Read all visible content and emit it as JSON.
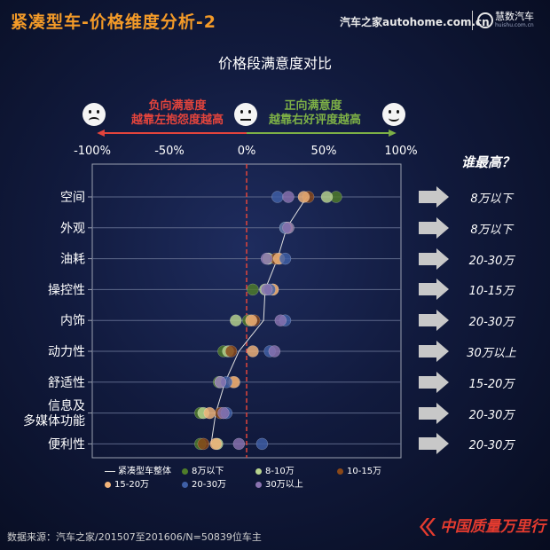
{
  "header": {
    "title": "紧凑型车-价格维度分析-2"
  },
  "brand": {
    "autohome": "汽车之家autohome.com.cn",
    "huishu": "慧数汽车",
    "huishu_url": "huishu.com.cn"
  },
  "banner": {
    "negative_title": "负向满意度",
    "negative_subtitle": "越靠左抱怨度越高",
    "positive_title": "正向满意度",
    "positive_subtitle": "越靠右好评度越高",
    "negative_color": "#e3443c",
    "positive_color": "#7db046",
    "faces": [
      "sad-face-icon",
      "neutral-face-icon",
      "happy-face-icon"
    ]
  },
  "answers_title": "谁最高？",
  "answers": [
    "8万以下",
    "8万以下",
    "20-30万",
    "10-15万",
    "20-30万",
    "30万以上",
    "15-20万",
    "20-30万",
    "20-30万"
  ],
  "chart_data": {
    "type": "scatter",
    "title": "价格段满意度对比",
    "categories": [
      "空间",
      "外观",
      "油耗",
      "操控性",
      "内饰",
      "动力性",
      "舒适性",
      "信息及\n多媒体功能",
      "便利性"
    ],
    "x_ticks": [
      "-100%",
      "-50%",
      "0%",
      "50%",
      "100%"
    ],
    "xlim": [
      -100,
      100
    ],
    "reference_line": 0,
    "series": [
      {
        "name": "紧凑型车整体",
        "type": "line",
        "color": "#e0e0e0",
        "values": [
          39,
          26,
          20,
          12,
          11,
          -5,
          -14,
          -20,
          -23
        ]
      },
      {
        "name": "8万以下",
        "color": "#4f7d2a",
        "values": [
          58,
          27,
          14,
          4,
          1,
          -15,
          -18,
          -30,
          -30
        ]
      },
      {
        "name": "8-10万",
        "color": "#b8d48e",
        "values": [
          52,
          25,
          14,
          12,
          -7,
          -12,
          -17,
          -28,
          -19
        ]
      },
      {
        "name": "10-15万",
        "color": "#8a4818",
        "values": [
          40,
          26,
          19,
          17,
          5,
          -10,
          -9,
          -17,
          -28
        ]
      },
      {
        "name": "15-20万",
        "color": "#f2b47a",
        "values": [
          37,
          26,
          21,
          17,
          3,
          4,
          -8,
          -24,
          -20
        ]
      },
      {
        "name": "20-30万",
        "color": "#3f5fa6",
        "values": [
          20,
          25,
          25,
          15,
          25,
          15,
          -13,
          -13,
          10
        ]
      },
      {
        "name": "30万以上",
        "color": "#8a73b0",
        "values": [
          27,
          27,
          13,
          13,
          22,
          18,
          -17,
          -15,
          -5
        ]
      }
    ]
  },
  "source": "数据来源：汽车之家/201507至201606/N=50839位车主",
  "footer_logo": "中国质量万里行"
}
